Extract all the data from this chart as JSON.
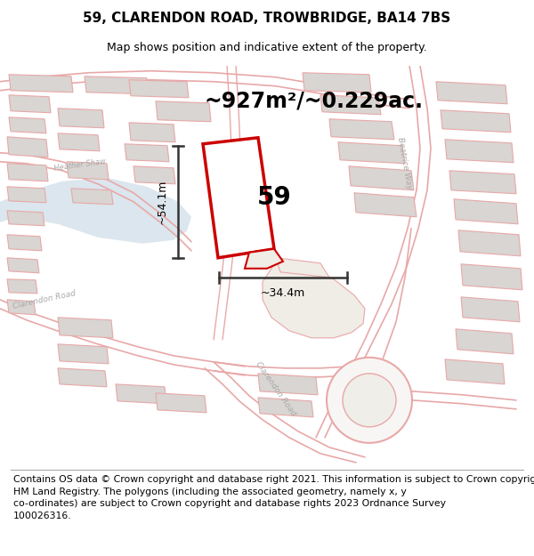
{
  "title": "59, CLARENDON ROAD, TROWBRIDGE, BA14 7BS",
  "subtitle": "Map shows position and indicative extent of the property.",
  "area_text": "~927m²/~0.229ac.",
  "dim_width": "~34.4m",
  "dim_height": "~54.1m",
  "label_number": "59",
  "footer_line1": "Contains OS data © Crown copyright and database right 2021. This information is subject to Crown copyright and database rights 2023 and is reproduced with the permission of",
  "footer_line2": "HM Land Registry. The polygons (including the associated geometry, namely x, y",
  "footer_line3": "co-ordinates) are subject to Crown copyright and database rights 2023 Ordnance Survey",
  "footer_line4": "100026316.",
  "map_bg": "#f8f6f4",
  "red_color": "#cc0000",
  "road_color": "#e8a8a8",
  "building_fill": "#d8d5d2",
  "building_edge": "#e8a8a8",
  "water_fill": "#ccdce8",
  "plot_fill": "#ffffff",
  "dim_color": "#333333",
  "title_fontsize": 11,
  "subtitle_fontsize": 9,
  "area_fontsize": 17,
  "label_fontsize": 20,
  "dim_fontsize": 9,
  "footer_fontsize": 7.8
}
